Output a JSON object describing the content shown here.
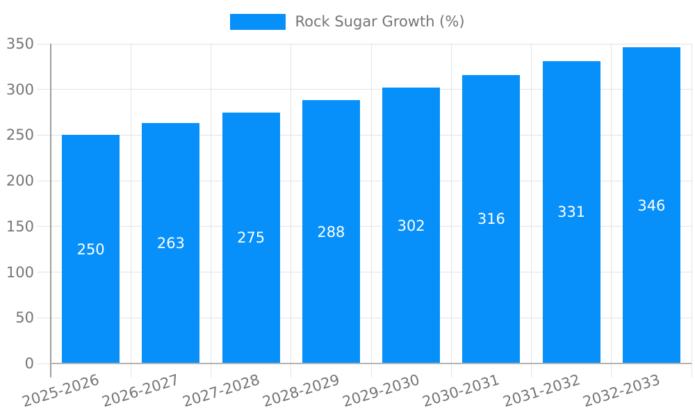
{
  "chart_data": {
    "type": "bar",
    "title": "",
    "legend": {
      "label": "Rock Sugar Growth (%)",
      "position": "top-center"
    },
    "categories": [
      "2025-2026",
      "2026-2027",
      "2027-2028",
      "2028-2029",
      "2029-2030",
      "2030-2031",
      "2031-2032",
      "2032-2033"
    ],
    "series": [
      {
        "name": "Rock Sugar Growth (%)",
        "values": [
          250,
          263,
          275,
          288,
          302,
          316,
          331,
          346
        ]
      }
    ],
    "ylim": [
      0,
      350
    ],
    "yticks": [
      0,
      50,
      100,
      150,
      200,
      250,
      300,
      350
    ],
    "grid": true,
    "x_label_rotation_deg": -17,
    "colors": {
      "bar": "#0890fa",
      "value_label": "#ffffff",
      "axis_text": "#757575",
      "gridline": "#e3e3e3",
      "axis_line": "#9e9e9e",
      "zero_line": "#b3b3b3",
      "background": "#ffffff"
    }
  }
}
